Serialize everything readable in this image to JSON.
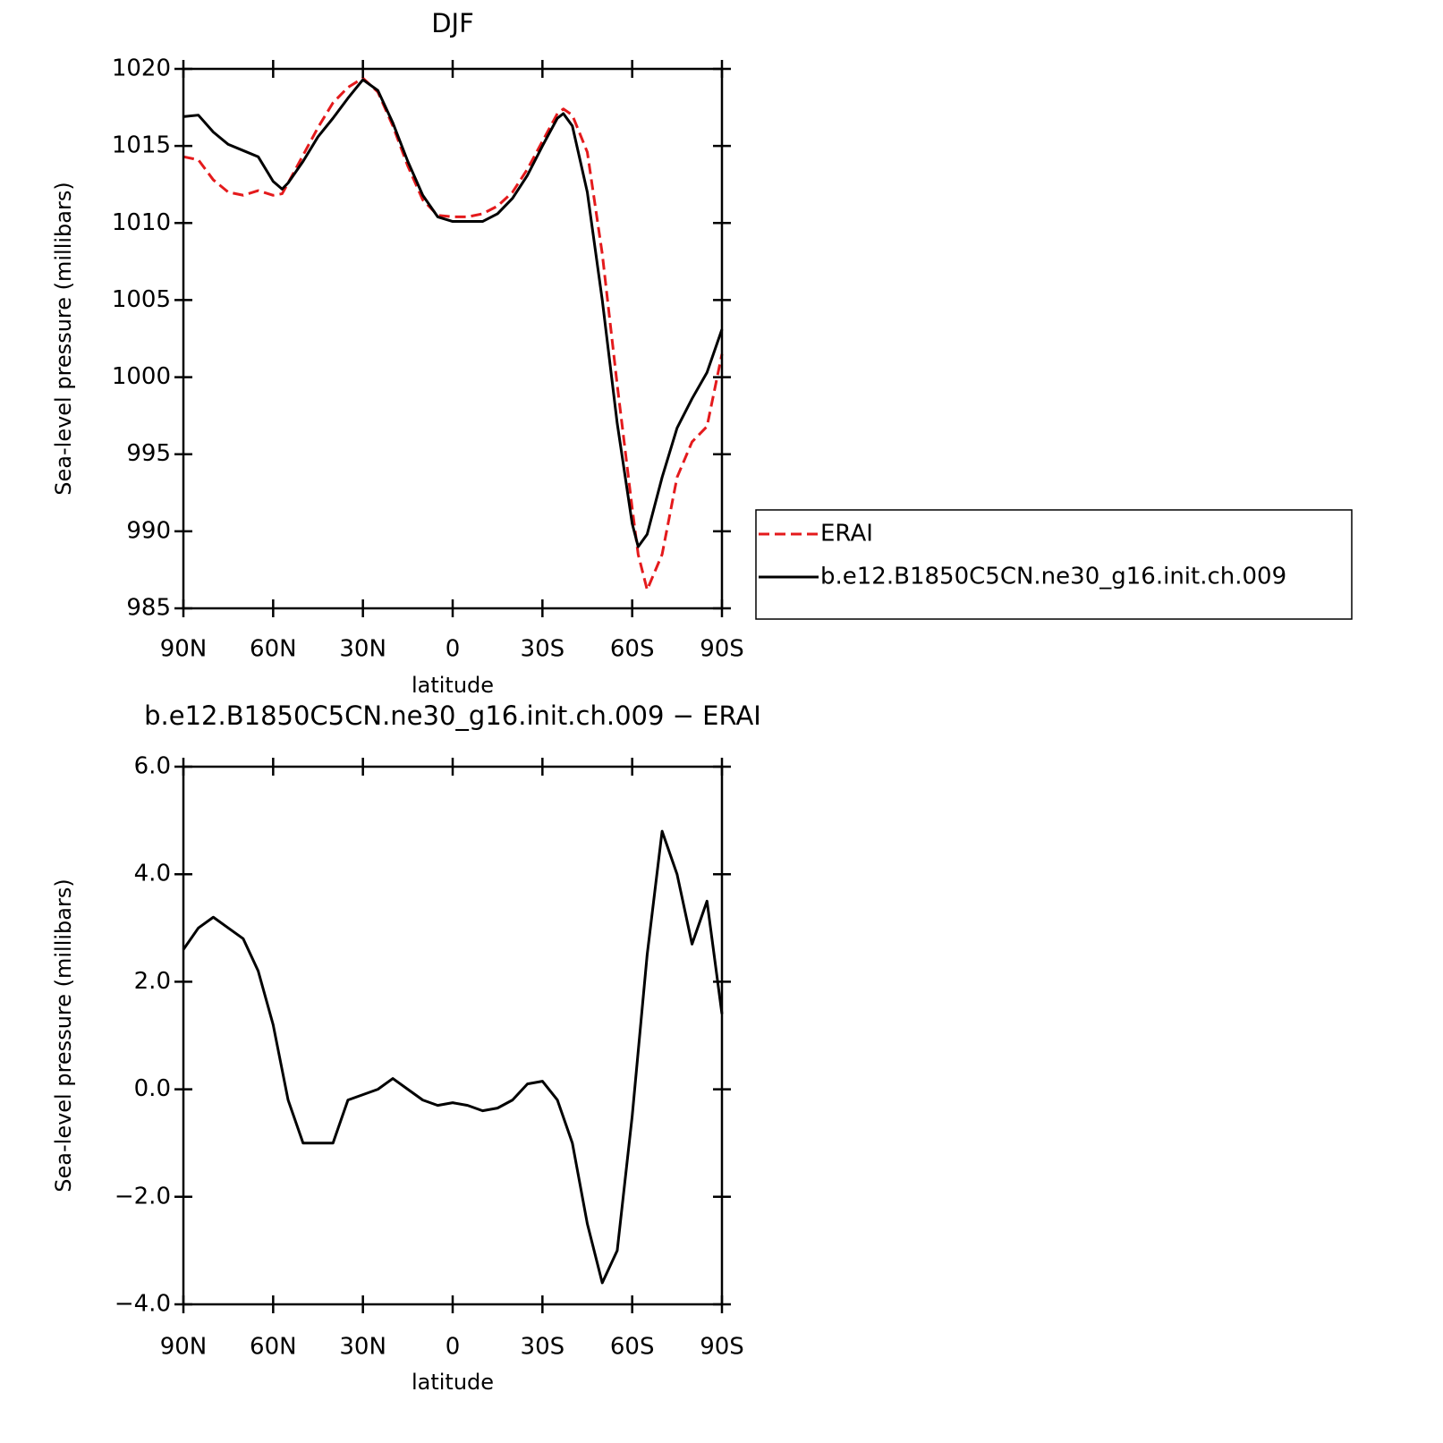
{
  "chart_data": [
    {
      "type": "line",
      "title": "DJF",
      "x_label": "latitude",
      "y_label": "Sea-level pressure (millibars)",
      "x": [
        90,
        85,
        80,
        75,
        70,
        65,
        60,
        57,
        55,
        50,
        45,
        40,
        35,
        30,
        25,
        20,
        15,
        10,
        5,
        0,
        -5,
        -10,
        -15,
        -20,
        -25,
        -30,
        -35,
        -37,
        -40,
        -45,
        -50,
        -55,
        -60,
        -62,
        -65,
        -70,
        -75,
        -80,
        -85,
        -90
      ],
      "series": [
        {
          "name": "ERAI",
          "color": "#e41a1c",
          "line_style": "dashed",
          "values": [
            1014.3,
            1014.1,
            1012.8,
            1012.0,
            1011.8,
            1012.1,
            1011.8,
            1011.9,
            1012.6,
            1014.4,
            1016.2,
            1017.8,
            1018.8,
            1019.4,
            1018.5,
            1016.3,
            1013.7,
            1011.5,
            1010.5,
            1010.4,
            1010.4,
            1010.6,
            1011.1,
            1012.0,
            1013.5,
            1015.3,
            1017.1,
            1017.4,
            1017.0,
            1014.6,
            1008.0,
            999.5,
            991.5,
            988.5,
            986.2,
            988.5,
            993.5,
            995.8,
            996.8,
            1001.5
          ]
        },
        {
          "name": "b.e12.B1850C5CN.ne30_g16.init.ch.009",
          "color": "#000000",
          "line_style": "solid",
          "values": [
            1016.9,
            1017.0,
            1015.9,
            1015.1,
            1014.7,
            1014.3,
            1012.7,
            1012.2,
            1012.6,
            1014.0,
            1015.6,
            1016.8,
            1018.1,
            1019.3,
            1018.6,
            1016.5,
            1014.0,
            1011.8,
            1010.4,
            1010.1,
            1010.1,
            1010.1,
            1010.6,
            1011.6,
            1013.1,
            1015.0,
            1016.8,
            1017.1,
            1016.3,
            1012.0,
            1005.0,
            997.0,
            990.5,
            989.0,
            989.8,
            993.5,
            996.7,
            998.6,
            1000.3,
            1003.1
          ]
        }
      ],
      "xlim": [
        90,
        -90
      ],
      "xticks": [
        {
          "value": 90,
          "label": "90N"
        },
        {
          "value": 60,
          "label": "60N"
        },
        {
          "value": 30,
          "label": "30N"
        },
        0,
        {
          "value": -30,
          "label": "30S"
        },
        {
          "value": -60,
          "label": "60S"
        },
        {
          "value": -90,
          "label": "90S"
        }
      ],
      "ylim": [
        985,
        1020
      ],
      "yticks": [
        985,
        990,
        995,
        1000,
        1005,
        1010,
        1015,
        1020
      ],
      "grid": false,
      "legend": "right"
    },
    {
      "type": "line",
      "title": "b.e12.B1850C5CN.ne30_g16.init.ch.009 − ERAI",
      "x_label": "latitude",
      "y_label": "Sea-level pressure (millibars)",
      "x": [
        90,
        85,
        80,
        75,
        70,
        65,
        60,
        55,
        50,
        45,
        40,
        35,
        30,
        25,
        20,
        15,
        10,
        5,
        0,
        -5,
        -10,
        -15,
        -20,
        -25,
        -30,
        -35,
        -40,
        -45,
        -50,
        -55,
        -60,
        -65,
        -70,
        -75,
        -80,
        -85,
        -90
      ],
      "series": [
        {
          "color": "#000000",
          "line_style": "solid",
          "values": [
            2.6,
            3.0,
            3.2,
            3.0,
            2.8,
            2.2,
            1.2,
            -0.2,
            -1.0,
            -1.0,
            -1.0,
            -0.2,
            -0.1,
            0.0,
            0.2,
            0.0,
            -0.2,
            -0.3,
            -0.25,
            -0.3,
            -0.4,
            -0.35,
            -0.2,
            0.1,
            0.15,
            -0.2,
            -1.0,
            -2.5,
            -3.6,
            -3.0,
            -0.5,
            2.5,
            4.8,
            4.0,
            2.7,
            3.5,
            1.4
          ]
        }
      ],
      "xlim": [
        90,
        -90
      ],
      "xticks": [
        {
          "value": 90,
          "label": "90N"
        },
        {
          "value": 60,
          "label": "60N"
        },
        {
          "value": 30,
          "label": "30N"
        },
        0,
        {
          "value": -30,
          "label": "30S"
        },
        {
          "value": -60,
          "label": "60S"
        },
        {
          "value": -90,
          "label": "90S"
        }
      ],
      "ylim": [
        -4,
        6
      ],
      "yticks": [
        {
          "value": -4,
          "label": "−4.0"
        },
        {
          "value": -2,
          "label": "−2.0"
        },
        {
          "value": 0,
          "label": "0.0"
        },
        {
          "value": 2,
          "label": "2.0"
        },
        {
          "value": 4,
          "label": "4.0"
        },
        {
          "value": 6,
          "label": "6.0"
        }
      ],
      "grid": false
    }
  ]
}
